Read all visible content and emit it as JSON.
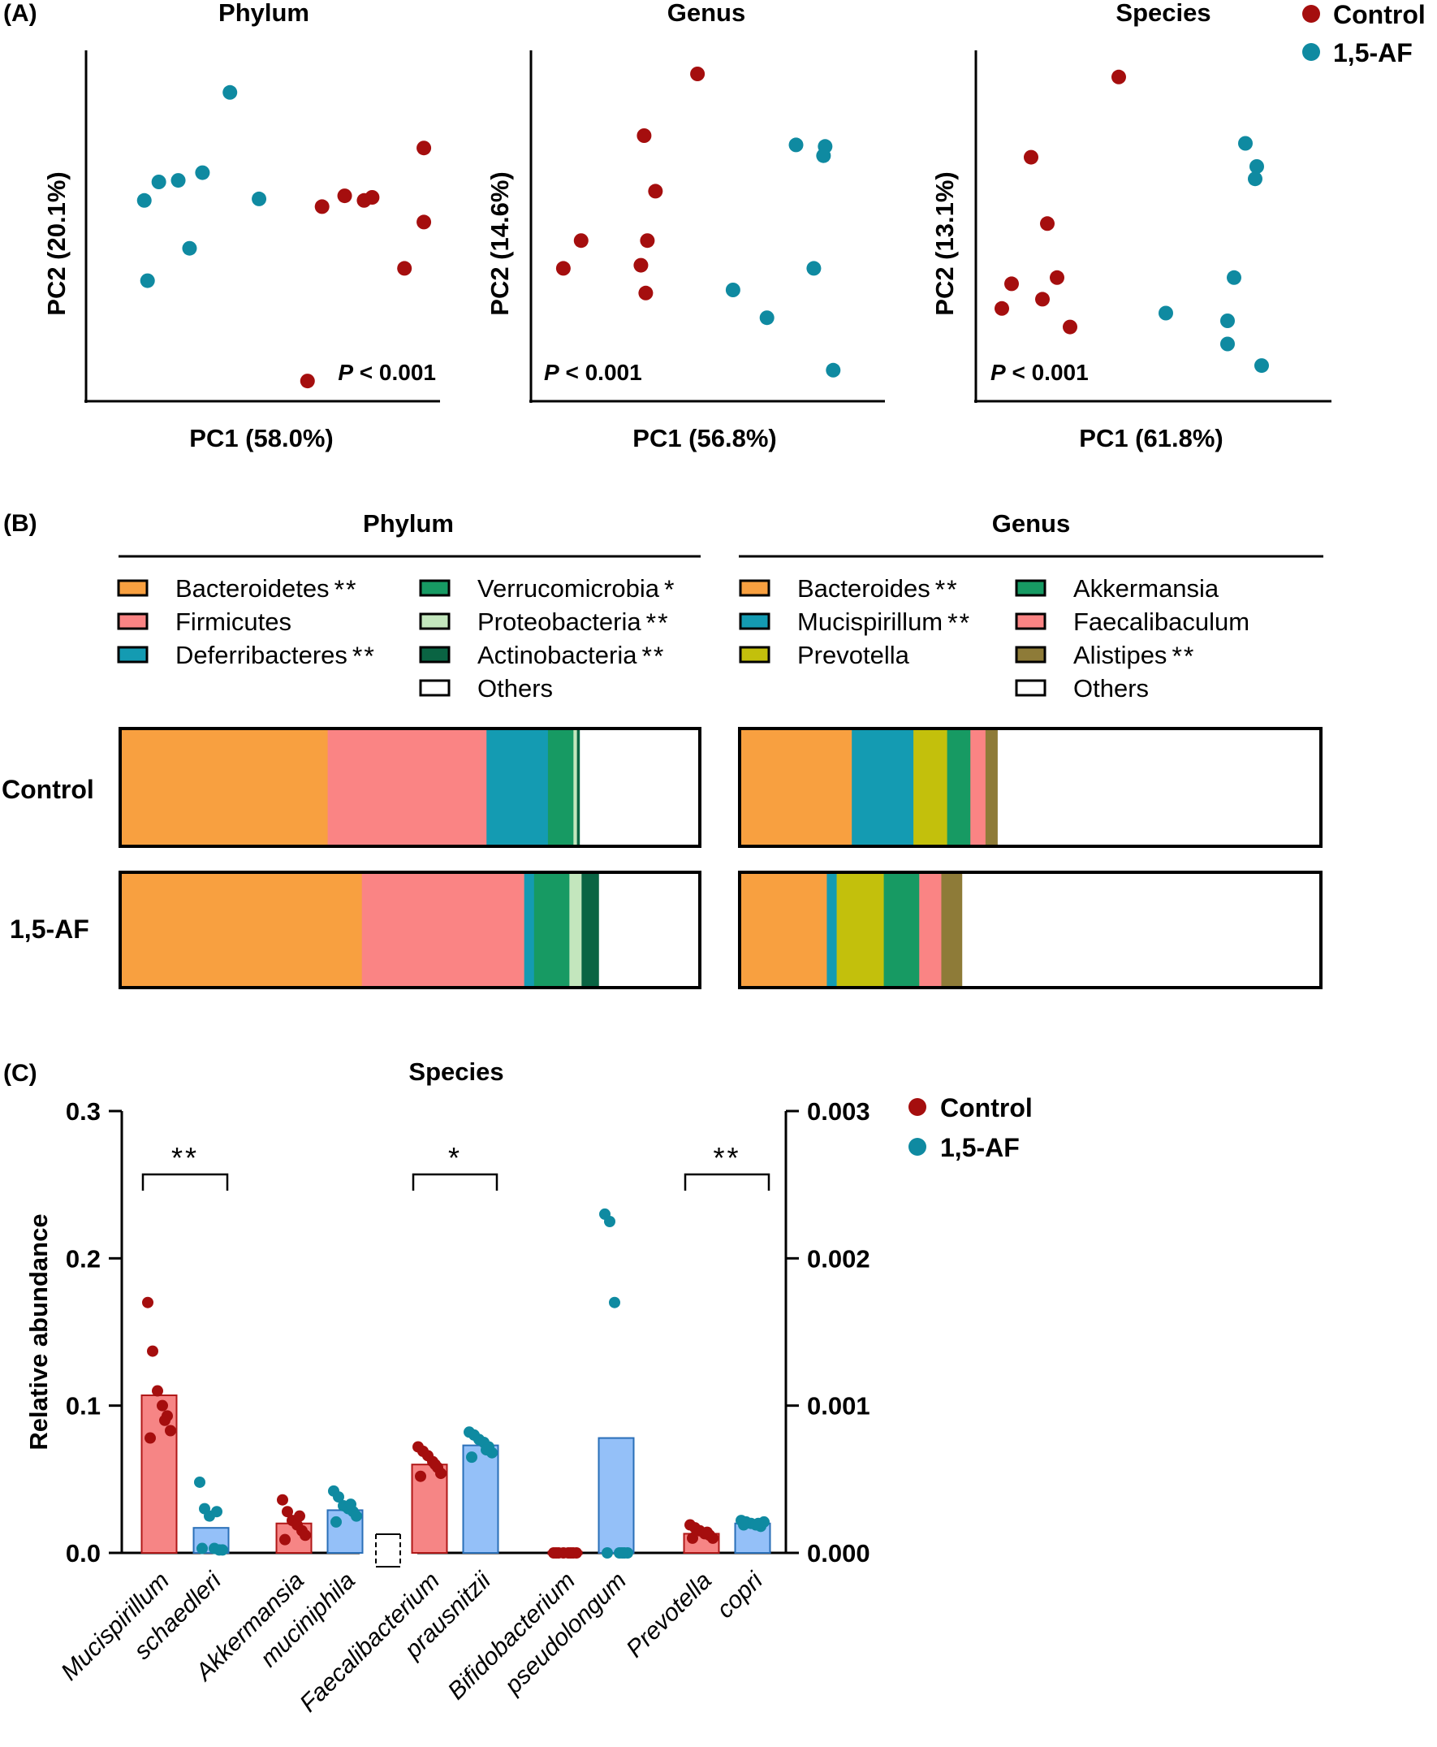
{
  "panel_labels": {
    "a": "(A)",
    "b": "(B)",
    "c": "(C)"
  },
  "colors": {
    "control": "#a50e0e",
    "af": "#0f8aa1",
    "control_bar": "#f68585",
    "af_bar": "#94c0f8"
  },
  "legend_a": {
    "control": "Control",
    "af": "1,5-AF"
  },
  "chart_data": [
    {
      "type": "scatter",
      "id": "pca-phylum",
      "title": "Phylum",
      "xlabel": "PC1 (58.0%)",
      "ylabel": "PC2 (20.1%)",
      "pvalue": {
        "p": "P",
        "rest": " < 0.001"
      },
      "pvalue_position": "bottom-right",
      "series": [
        {
          "name": "Control",
          "points": [
            [
              2.4,
              6.2
            ],
            [
              3.1,
              6.55
            ],
            [
              3.7,
              6.4
            ],
            [
              3.95,
              6.5
            ],
            [
              4.95,
              4.2
            ],
            [
              5.55,
              5.7
            ],
            [
              5.55,
              8.1
            ],
            [
              1.95,
              0.55
            ]
          ]
        },
        {
          "name": "1,5-AF",
          "points": [
            [
              -3.1,
              6.4
            ],
            [
              -2.65,
              7.0
            ],
            [
              -2.05,
              7.05
            ],
            [
              -1.3,
              7.3
            ],
            [
              -3.0,
              3.8
            ],
            [
              -1.7,
              4.85
            ],
            [
              -0.45,
              9.9
            ],
            [
              0.45,
              6.45
            ]
          ]
        }
      ]
    },
    {
      "type": "scatter",
      "id": "pca-genus",
      "title": "Genus",
      "xlabel": "PC1 (56.8%)",
      "ylabel": "PC2 (14.6%)",
      "pvalue": {
        "p": "P",
        "rest": " < 0.001"
      },
      "pvalue_position": "bottom-left",
      "series": [
        {
          "name": "Control",
          "points": [
            [
              -3.9,
              4.2
            ],
            [
              -3.35,
              5.1
            ],
            [
              -1.5,
              4.3
            ],
            [
              -1.3,
              5.1
            ],
            [
              -1.05,
              6.7
            ],
            [
              -1.4,
              8.5
            ],
            [
              0.25,
              10.5
            ],
            [
              -1.35,
              3.4
            ]
          ]
        },
        {
          "name": "1,5-AF",
          "points": [
            [
              1.35,
              3.5
            ],
            [
              2.4,
              2.6
            ],
            [
              3.3,
              8.2
            ],
            [
              4.2,
              8.15
            ],
            [
              4.15,
              7.85
            ],
            [
              4.45,
              0.9
            ],
            [
              3.85,
              4.2
            ]
          ]
        }
      ]
    },
    {
      "type": "scatter",
      "id": "pca-species",
      "title": "Species",
      "xlabel": "PC1 (61.8%)",
      "ylabel": "PC2 (13.1%)",
      "pvalue": {
        "p": "P",
        "rest": " < 0.001"
      },
      "pvalue_position": "bottom-left",
      "series": [
        {
          "name": "Control",
          "points": [
            [
              -4.1,
              2.9
            ],
            [
              -3.8,
              3.7
            ],
            [
              -3.2,
              7.8
            ],
            [
              -2.7,
              5.65
            ],
            [
              -2.85,
              3.2
            ],
            [
              -2.4,
              3.9
            ],
            [
              -2.0,
              2.3
            ],
            [
              -0.5,
              10.4
            ]
          ]
        },
        {
          "name": "1,5-AF",
          "points": [
            [
              0.95,
              2.75
            ],
            [
              2.85,
              2.5
            ],
            [
              3.05,
              3.9
            ],
            [
              2.85,
              1.75
            ],
            [
              3.4,
              8.25
            ],
            [
              3.75,
              7.5
            ],
            [
              3.7,
              7.1
            ],
            [
              3.9,
              1.05
            ]
          ]
        }
      ]
    },
    {
      "type": "stacked-bar",
      "id": "stack-phylum",
      "title": "Phylum",
      "rows": [
        "Control",
        "1,5-AF"
      ],
      "legend": [
        {
          "name": "Bacteroidetes",
          "sig": "**",
          "color": "#f8a040"
        },
        {
          "name": "Firmicutes",
          "sig": "",
          "color": "#fa8484"
        },
        {
          "name": "Deferribacteres",
          "sig": "**",
          "color": "#149bb2"
        },
        {
          "name": "Verrucomicrobia",
          "sig": "*",
          "color": "#179a63"
        },
        {
          "name": "Proteobacteria",
          "sig": "**",
          "color": "#c3e6bd"
        },
        {
          "name": "Actinobacteria",
          "sig": "**",
          "color": "#0a6443"
        },
        {
          "name": "Others",
          "sig": "",
          "color": "#ffffff"
        }
      ],
      "values": [
        [
          35.8,
          27.4,
          10.6,
          4.4,
          0.6,
          0.5,
          20.7
        ],
        [
          41.7,
          28.0,
          1.7,
          6.1,
          2.1,
          3.0,
          17.4
        ]
      ]
    },
    {
      "type": "stacked-bar",
      "id": "stack-genus",
      "title": "Genus",
      "rows": [
        "Control",
        "1,5-AF"
      ],
      "legend": [
        {
          "name": "Bacteroides",
          "sig": "**",
          "color": "#f8a040"
        },
        {
          "name": "Mucispirillum",
          "sig": "**",
          "color": "#149bb2"
        },
        {
          "name": "Prevotella",
          "sig": "",
          "color": "#c3c00c"
        },
        {
          "name": "Akkermansia",
          "sig": "",
          "color": "#179a63"
        },
        {
          "name": "Faecalibaculum",
          "sig": "",
          "color": "#fa8484"
        },
        {
          "name": "Alistipes",
          "sig": "**",
          "color": "#8e7b38"
        },
        {
          "name": "Others",
          "sig": "",
          "color": "#ffffff"
        }
      ],
      "values": [
        [
          19.3,
          10.6,
          5.8,
          4.0,
          2.6,
          2.1,
          55.6
        ],
        [
          15.0,
          1.7,
          8.1,
          6.1,
          3.8,
          3.6,
          61.7
        ]
      ]
    },
    {
      "type": "bar",
      "id": "species-bars",
      "title": "Species",
      "ylabel": "Relative abundance",
      "ylim_left": [
        0,
        0.3
      ],
      "ylim_right": [
        0,
        0.003
      ],
      "yticks_left": [
        "0.0",
        "0.1",
        "0.2",
        "0.3"
      ],
      "yticks_right": [
        "0.000",
        "0.001",
        "0.002",
        "0.003"
      ],
      "series_names": [
        "Control",
        "1,5-AF"
      ],
      "categories": [
        {
          "line1": "Mucispirillum",
          "line2": "schaedleri",
          "axis": "left",
          "sig": "**",
          "control": {
            "mean": 0.107,
            "points": [
              0.17,
              0.137,
              0.11,
              0.1,
              0.093,
              0.083,
              0.078,
              0.09
            ]
          },
          "af": {
            "mean": 0.017,
            "points": [
              0.048,
              0.03,
              0.025,
              0.003,
              0.002,
              0.002,
              0.003,
              0.028
            ]
          }
        },
        {
          "line1": "Akkermansia",
          "line2": "muciniphila",
          "axis": "left",
          "sig": "",
          "control": {
            "mean": 0.02,
            "points": [
              0.036,
              0.028,
              0.022,
              0.019,
              0.015,
              0.012,
              0.009,
              0.025
            ]
          },
          "af": {
            "mean": 0.029,
            "points": [
              0.042,
              0.038,
              0.032,
              0.03,
              0.028,
              0.025,
              0.021,
              0.033
            ]
          }
        },
        {
          "line1": "Faecalibacterium",
          "line2": "prausnitzii",
          "axis": "right",
          "sig": "*",
          "control": {
            "mean": 0.0006,
            "points": [
              0.00072,
              0.00069,
              0.00066,
              0.00062,
              0.00058,
              0.00054,
              0.00052,
              0.0006
            ]
          },
          "af": {
            "mean": 0.00073,
            "points": [
              0.00082,
              0.0008,
              0.00077,
              0.00075,
              0.00072,
              0.00068,
              0.00065,
              0.0007
            ]
          }
        },
        {
          "line1": "Bifidobacterium",
          "line2": "pseudolongum",
          "axis": "right",
          "sig": "",
          "control": {
            "mean": 0,
            "points": [
              0,
              0,
              0,
              0,
              0,
              0,
              0,
              0
            ]
          },
          "af": {
            "mean": 0.00078,
            "points": [
              0.0023,
              0.00225,
              0.0017,
              0,
              0,
              0,
              0,
              0
            ]
          }
        },
        {
          "line1": "Prevotella",
          "line2": "copri",
          "axis": "right",
          "sig": "**",
          "control": {
            "mean": 0.00013,
            "points": [
              0.00019,
              0.00017,
              0.00015,
              0.00013,
              0.00012,
              0.0001,
              0.0001,
              0.00014
            ]
          },
          "af": {
            "mean": 0.0002,
            "points": [
              0.00022,
              0.00021,
              0.0002,
              0.00019,
              0.00018,
              0.00021,
              0.00019,
              0.0002
            ]
          }
        }
      ]
    }
  ],
  "legend_c": {
    "control": "Control",
    "af": "1,5-AF"
  }
}
